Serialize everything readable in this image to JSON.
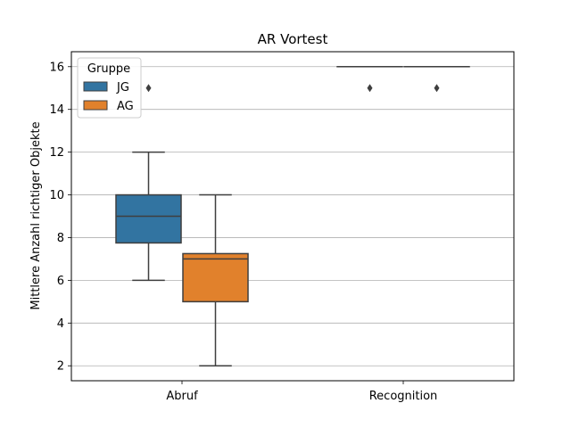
{
  "chart_data": {
    "type": "boxplot",
    "title": "AR Vortest",
    "xlabel": "",
    "ylabel": "Mittlere Anzahl richtiger Objekte",
    "categories": [
      "Abruf",
      "Recognition"
    ],
    "ylim": [
      1.3,
      16.7
    ],
    "yticks": [
      2,
      4,
      6,
      8,
      10,
      12,
      14,
      16
    ],
    "grid": "y",
    "legend": {
      "title": "Gruppe",
      "position": "top-left",
      "entries": [
        "JG",
        "AG"
      ]
    },
    "series": [
      {
        "name": "JG",
        "color": "#3274a1",
        "boxes": [
          {
            "category": "Abruf",
            "whisker_low": 6,
            "q1": 7.75,
            "median": 9,
            "q3": 10,
            "whisker_high": 12,
            "outliers": [
              15
            ]
          },
          {
            "category": "Recognition",
            "whisker_low": 16,
            "q1": 16,
            "median": 16,
            "q3": 16,
            "whisker_high": 16,
            "outliers": [
              15
            ]
          }
        ]
      },
      {
        "name": "AG",
        "color": "#e1812c",
        "boxes": [
          {
            "category": "Abruf",
            "whisker_low": 2,
            "q1": 5,
            "median": 7,
            "q3": 7.25,
            "whisker_high": 10,
            "outliers": []
          },
          {
            "category": "Recognition",
            "whisker_low": 16,
            "q1": 16,
            "median": 16,
            "q3": 16,
            "whisker_high": 16,
            "outliers": [
              15
            ]
          }
        ]
      }
    ]
  }
}
